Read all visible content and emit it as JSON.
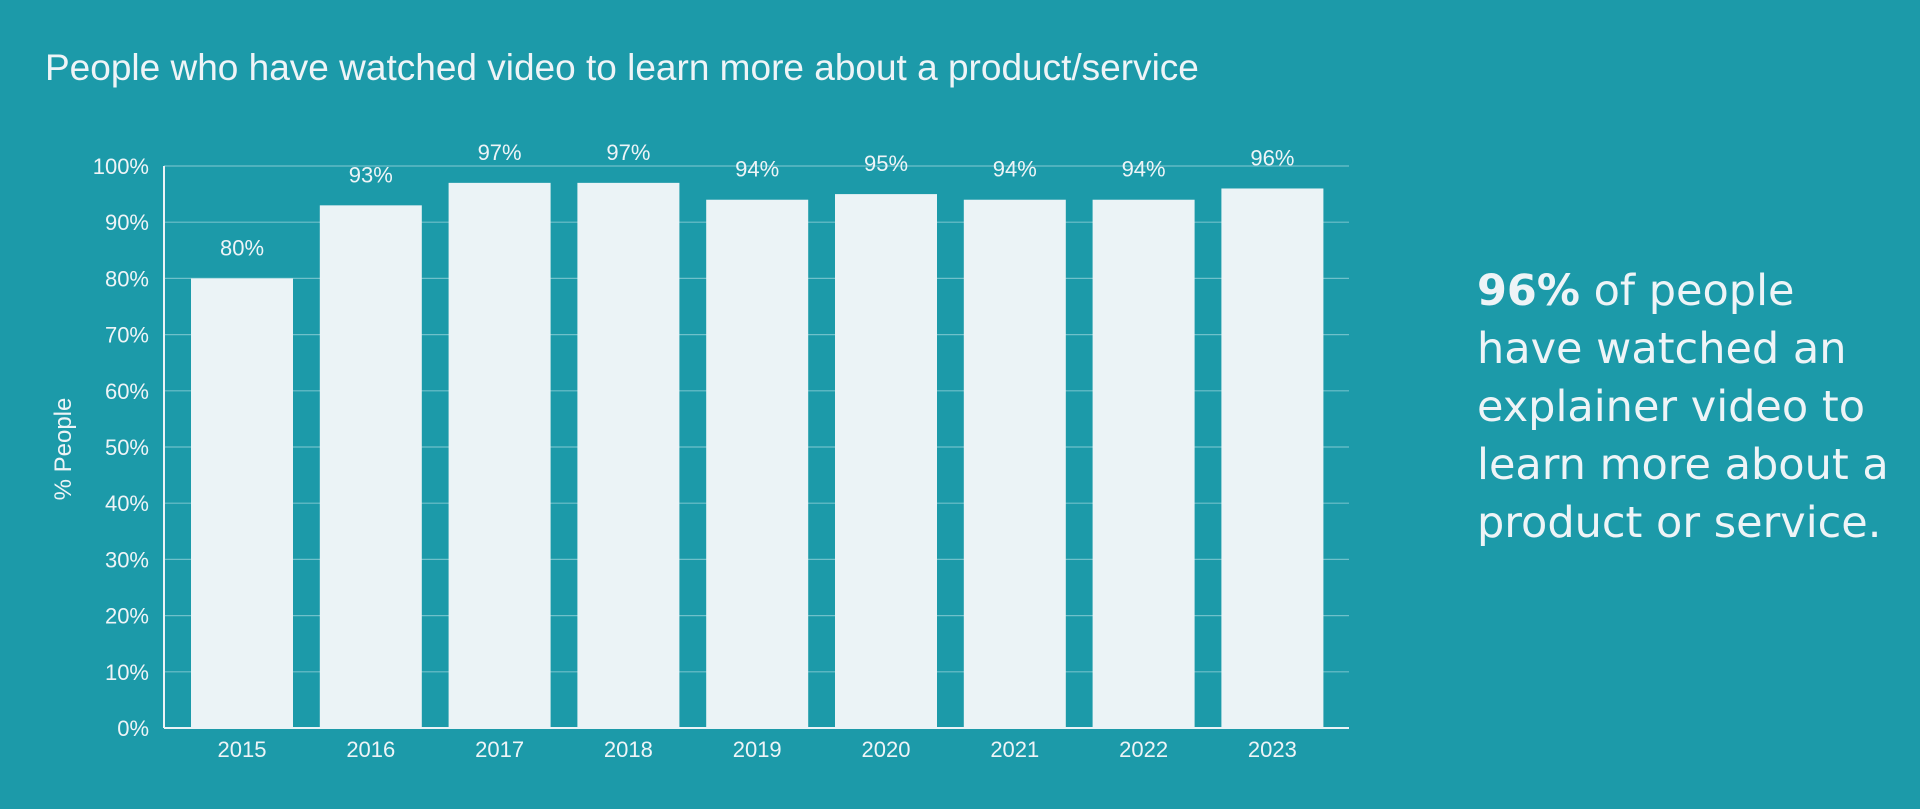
{
  "chart_data": {
    "type": "bar",
    "title": "People who have watched video to learn more about a product/service",
    "xlabel": "",
    "ylabel": "% People",
    "categories": [
      "2015",
      "2016",
      "2017",
      "2018",
      "2019",
      "2020",
      "2021",
      "2022",
      "2023"
    ],
    "values": [
      80,
      93,
      97,
      97,
      94,
      95,
      94,
      94,
      96
    ],
    "data_labels": [
      "80%",
      "93%",
      "97%",
      "97%",
      "94%",
      "95%",
      "94%",
      "94%",
      "96%"
    ],
    "ylim": [
      0,
      100
    ],
    "yticks": [
      "0%",
      "10%",
      "20%",
      "30%",
      "40%",
      "50%",
      "60%",
      "70%",
      "80%",
      "90%",
      "100%"
    ],
    "grid": true,
    "legend": "none"
  },
  "callout": {
    "highlight": "96%",
    "text": " of people have watched an explainer video to learn more about a product or service."
  },
  "colors": {
    "background": "#1c9aa9",
    "bar": "#ebf3f6",
    "text": "#eef4f7",
    "gridline": "#6fc0ca"
  }
}
